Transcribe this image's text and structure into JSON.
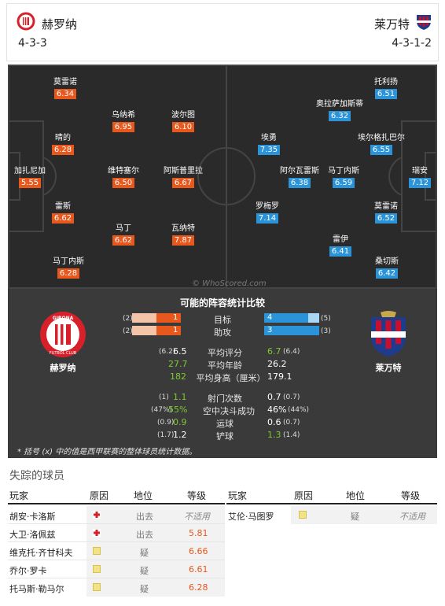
{
  "header": {
    "home_name": "赫罗纳",
    "home_formation": "4-3-3",
    "away_name": "莱万特",
    "away_formation": "4-3-1-2"
  },
  "colors": {
    "home": "#e8581c",
    "away": "#2b94d9",
    "pitch": "#2a2a2a",
    "positive": "#7ec832"
  },
  "pitch": {
    "watermark": "© WhoScored.com",
    "home_players": [
      {
        "name": "莫雷诺",
        "rating": "6.34"
      },
      {
        "name": "乌纳希",
        "rating": "6.95"
      },
      {
        "name": "波尔图",
        "rating": "6.10"
      },
      {
        "name": "晴的",
        "rating": "6.28"
      },
      {
        "name": "加扎尼加",
        "rating": "5.55"
      },
      {
        "name": "维特塞尔",
        "rating": "6.50"
      },
      {
        "name": "阿斯普里拉",
        "rating": "6.67"
      },
      {
        "name": "雷斯",
        "rating": "6.62"
      },
      {
        "name": "马丁",
        "rating": "6.62"
      },
      {
        "name": "瓦纳特",
        "rating": "7.87"
      },
      {
        "name": "马丁内斯",
        "rating": "6.28"
      }
    ],
    "away_players": [
      {
        "name": "托利扬",
        "rating": "6.51"
      },
      {
        "name": "奥拉萨加斯蒂",
        "rating": "6.32"
      },
      {
        "name": "埃勇",
        "rating": "7.35"
      },
      {
        "name": "埃尔格扎巴尔",
        "rating": "6.55"
      },
      {
        "name": "阿尔瓦雷斯",
        "rating": "6.38"
      },
      {
        "name": "马丁内斯",
        "rating": "6.59"
      },
      {
        "name": "瑞安",
        "rating": "7.12"
      },
      {
        "name": "罗梅罗",
        "rating": "7.14"
      },
      {
        "name": "莫雷诺",
        "rating": "6.52"
      },
      {
        "name": "雷伊",
        "rating": "6.41"
      },
      {
        "name": "桑切斯",
        "rating": "6.42"
      }
    ]
  },
  "comparison": {
    "title": "可能的阵容统计比较",
    "home_team": "赫罗纳",
    "away_team": "莱万特",
    "bars": [
      {
        "label": "目标",
        "home": "1",
        "home_avg": "(2)",
        "away": "4",
        "away_avg": "(5)",
        "home_value": 1,
        "home_max": 2,
        "away_value": 4,
        "away_max": 5
      },
      {
        "label": "助攻",
        "home": "1",
        "home_avg": "(2)",
        "away": "3",
        "away_avg": "(3)",
        "home_value": 1,
        "home_max": 2,
        "away_value": 3,
        "away_max": 3
      }
    ],
    "stats_a": [
      {
        "label": "平均评分",
        "home_avg": "(6.2)",
        "home": "6.5",
        "home_green": false,
        "away": "6.7",
        "away_green": true,
        "away_avg": "(6.4)"
      },
      {
        "label": "平均年龄",
        "home_avg": "",
        "home": "27.7",
        "home_green": true,
        "away": "26.2",
        "away_green": false,
        "away_avg": ""
      },
      {
        "label": "平均身高（厘米）",
        "home_avg": "",
        "home": "182",
        "home_green": true,
        "away": "179.1",
        "away_green": false,
        "away_avg": ""
      }
    ],
    "stats_b": [
      {
        "label": "射门次数",
        "home_avg": "(1)",
        "home": "1.1",
        "home_green": true,
        "away": "0.7",
        "away_green": false,
        "away_avg": "(0.7)"
      },
      {
        "label": "空中决斗成功",
        "home_avg": "(47%)",
        "home": "55%",
        "home_green": true,
        "away": "46%",
        "away_green": false,
        "away_avg": "(44%)"
      },
      {
        "label": "运球",
        "home_avg": "(0.9)",
        "home": "0.9",
        "home_green": true,
        "away": "0.6",
        "away_green": false,
        "away_avg": "(0.7)"
      },
      {
        "label": "铲球",
        "home_avg": "(1.7)",
        "home": "1.2",
        "home_green": false,
        "away": "1.3",
        "away_green": true,
        "away_avg": "(1.4)"
      }
    ],
    "footnote": "* 括号 (x) 中的值是西甲联赛的整体球员统计数据。"
  },
  "missing": {
    "title": "失踪的球员",
    "headers": [
      "玩家",
      "原因",
      "地位",
      "等级"
    ],
    "home": [
      {
        "player": "胡安·卡洛斯",
        "reason_icon": "red-cross-icon",
        "status": "出去",
        "rating": "不适用"
      },
      {
        "player": "大卫·洛佩兹",
        "reason_icon": "red-cross-icon",
        "status": "出去",
        "rating": "5.81"
      },
      {
        "player": "维克托·齐甘科夫",
        "reason_icon": "doubtful-icon",
        "status": "疑",
        "rating": "6.66"
      },
      {
        "player": "乔尔·罗卡",
        "reason_icon": "doubtful-icon",
        "status": "疑",
        "rating": "6.61"
      },
      {
        "player": "托马斯·勒马尔",
        "reason_icon": "doubtful-icon",
        "status": "疑",
        "rating": "6.28"
      }
    ],
    "away": [
      {
        "player": "艾伦·马图罗",
        "reason_icon": "doubtful-icon",
        "status": "疑",
        "rating": "不适用"
      }
    ]
  }
}
